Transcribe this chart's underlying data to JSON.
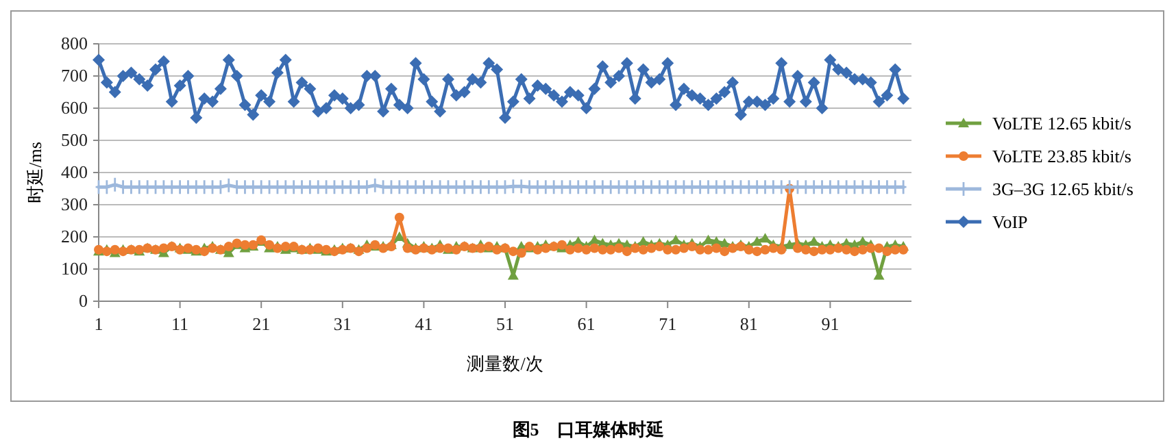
{
  "chart_data": {
    "type": "line",
    "title": "图5　口耳媒体时延",
    "xlabel": "测量数/次",
    "ylabel": "时延/ms",
    "grid": "y",
    "legend": "right",
    "xlim": [
      1,
      101
    ],
    "ylim": [
      0,
      800
    ],
    "xticks": [
      1,
      11,
      21,
      31,
      41,
      51,
      61,
      71,
      81,
      91
    ],
    "yticks": [
      0,
      100,
      200,
      300,
      400,
      500,
      600,
      700,
      800
    ],
    "x": [
      1,
      2,
      3,
      4,
      5,
      6,
      7,
      8,
      9,
      10,
      11,
      12,
      13,
      14,
      15,
      16,
      17,
      18,
      19,
      20,
      21,
      22,
      23,
      24,
      25,
      26,
      27,
      28,
      29,
      30,
      31,
      32,
      33,
      34,
      35,
      36,
      37,
      38,
      39,
      40,
      41,
      42,
      43,
      44,
      45,
      46,
      47,
      48,
      49,
      50,
      51,
      52,
      53,
      54,
      55,
      56,
      57,
      58,
      59,
      60,
      61,
      62,
      63,
      64,
      65,
      66,
      67,
      68,
      69,
      70,
      71,
      72,
      73,
      74,
      75,
      76,
      77,
      78,
      79,
      80,
      81,
      82,
      83,
      84,
      85,
      86,
      87,
      88,
      89,
      90,
      91,
      92,
      93,
      94,
      95,
      96,
      97,
      98,
      99,
      100
    ],
    "series": [
      {
        "name": "VoLTE 12.65 kbit/s",
        "color": "#70a040",
        "marker": "triangle",
        "values": [
          155,
          160,
          150,
          160,
          160,
          155,
          165,
          160,
          150,
          170,
          165,
          160,
          155,
          165,
          170,
          160,
          150,
          175,
          165,
          170,
          185,
          165,
          170,
          160,
          165,
          160,
          165,
          160,
          155,
          160,
          165,
          165,
          160,
          175,
          170,
          170,
          175,
          200,
          180,
          165,
          170,
          165,
          175,
          160,
          170,
          170,
          165,
          175,
          165,
          170,
          165,
          80,
          170,
          165,
          170,
          175,
          170,
          165,
          175,
          185,
          170,
          190,
          180,
          175,
          180,
          175,
          170,
          185,
          175,
          180,
          175,
          190,
          175,
          180,
          170,
          190,
          185,
          180,
          170,
          175,
          170,
          185,
          195,
          175,
          170,
          175,
          180,
          175,
          185,
          170,
          175,
          170,
          180,
          175,
          185,
          175,
          80,
          170,
          175,
          170
        ]
      },
      {
        "name": "VoLTE 23.85 kbit/s",
        "color": "#ed7d31",
        "marker": "circle",
        "values": [
          160,
          155,
          160,
          155,
          160,
          160,
          165,
          160,
          165,
          170,
          160,
          165,
          160,
          155,
          165,
          160,
          170,
          180,
          175,
          175,
          190,
          175,
          165,
          170,
          170,
          160,
          160,
          165,
          160,
          155,
          160,
          165,
          155,
          165,
          175,
          165,
          170,
          260,
          165,
          160,
          165,
          160,
          165,
          165,
          160,
          170,
          165,
          165,
          170,
          160,
          165,
          155,
          150,
          170,
          160,
          165,
          170,
          175,
          160,
          165,
          160,
          165,
          160,
          160,
          165,
          155,
          165,
          160,
          165,
          170,
          160,
          160,
          165,
          170,
          160,
          160,
          165,
          155,
          165,
          170,
          160,
          155,
          160,
          165,
          160,
          350,
          165,
          160,
          155,
          160,
          160,
          165,
          160,
          155,
          160,
          165,
          165,
          155,
          160,
          160
        ]
      },
      {
        "name": "3G–3G 12.65 kbit/s",
        "color": "#9db8dc",
        "marker": "cross",
        "values": [
          355,
          355,
          362,
          355,
          355,
          355,
          355,
          355,
          355,
          355,
          355,
          355,
          355,
          355,
          355,
          355,
          360,
          355,
          355,
          355,
          355,
          355,
          355,
          355,
          355,
          355,
          355,
          355,
          355,
          355,
          355,
          355,
          355,
          355,
          360,
          355,
          355,
          355,
          355,
          355,
          355,
          355,
          355,
          355,
          355,
          355,
          355,
          355,
          355,
          355,
          355,
          357,
          357,
          355,
          355,
          355,
          355,
          355,
          355,
          355,
          355,
          355,
          355,
          355,
          355,
          355,
          355,
          355,
          355,
          355,
          355,
          355,
          355,
          355,
          355,
          355,
          355,
          355,
          355,
          355,
          355,
          355,
          355,
          355,
          355,
          355,
          355,
          355,
          355,
          355,
          355,
          355,
          355,
          355,
          355,
          355,
          355,
          355,
          355,
          355
        ]
      },
      {
        "name": "VoIP",
        "color": "#3b6db3",
        "marker": "diamond",
        "values": [
          750,
          680,
          650,
          700,
          710,
          690,
          670,
          720,
          745,
          620,
          670,
          700,
          570,
          630,
          620,
          660,
          750,
          700,
          610,
          580,
          640,
          620,
          710,
          750,
          620,
          680,
          660,
          590,
          600,
          640,
          630,
          600,
          610,
          700,
          700,
          590,
          660,
          610,
          600,
          740,
          690,
          620,
          590,
          690,
          640,
          650,
          690,
          680,
          740,
          720,
          570,
          620,
          690,
          630,
          670,
          660,
          640,
          620,
          650,
          640,
          600,
          660,
          730,
          680,
          700,
          740,
          630,
          720,
          680,
          690,
          740,
          610,
          660,
          640,
          630,
          610,
          630,
          650,
          680,
          580,
          620,
          620,
          610,
          630,
          740,
          620,
          700,
          620,
          680,
          600,
          750,
          720,
          710,
          690,
          690,
          680,
          620,
          640,
          720,
          630
        ]
      }
    ]
  }
}
